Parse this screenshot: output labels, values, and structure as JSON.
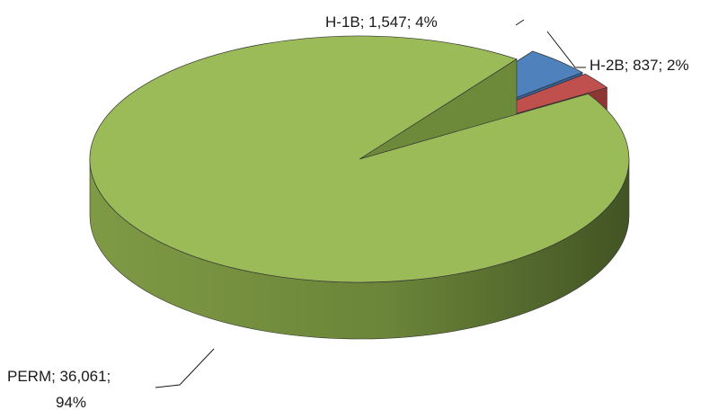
{
  "chart_data": {
    "type": "pie",
    "style": "3d-exploded",
    "title": "",
    "categories": [
      "PERM",
      "H-1B",
      "H-2B"
    ],
    "values": [
      36061,
      1547,
      837
    ],
    "percent": [
      94,
      4,
      2
    ],
    "colors": {
      "PERM": "#9BBB59",
      "H-1B": "#4F81BD",
      "H-2B": "#C0504D"
    },
    "labels": [
      {
        "series": "PERM",
        "lines": [
          "PERM; 36,061;",
          "94%"
        ]
      },
      {
        "series": "H-1B",
        "lines": [
          "H-1B; 1,547; 4%"
        ]
      },
      {
        "series": "H-2B",
        "lines": [
          "H-2B; 837; 2%"
        ]
      }
    ],
    "legend": "none"
  }
}
